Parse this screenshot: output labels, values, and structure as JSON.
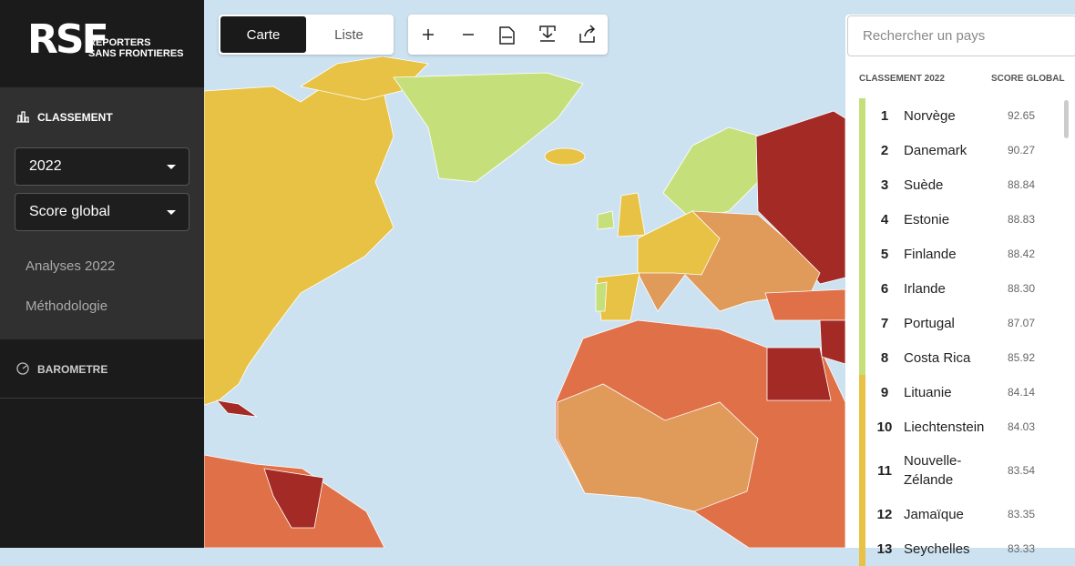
{
  "logo": {
    "mark": "RSF",
    "line1": "REPORTERS",
    "line2": "SANS FRONTIERES"
  },
  "sidebar": {
    "ranking_title": "CLASSEMENT",
    "year": "2022",
    "indicator": "Score global",
    "links": [
      "Analyses 2022",
      "Méthodologie"
    ],
    "barometer_title": "BAROMETRE"
  },
  "toolbar": {
    "tabs": [
      "Carte",
      "Liste"
    ]
  },
  "panel": {
    "search_placeholder": "Rechercher un pays",
    "header_left": "CLASSEMENT 2022",
    "header_right": "SCORE GLOBAL",
    "rows": [
      {
        "rank": "1",
        "country": "Norvège",
        "score": "92.65",
        "color": "#c5e07a"
      },
      {
        "rank": "2",
        "country": "Danemark",
        "score": "90.27",
        "color": "#c5e07a"
      },
      {
        "rank": "3",
        "country": "Suède",
        "score": "88.84",
        "color": "#c5e07a"
      },
      {
        "rank": "4",
        "country": "Estonie",
        "score": "88.83",
        "color": "#c5e07a"
      },
      {
        "rank": "5",
        "country": "Finlande",
        "score": "88.42",
        "color": "#c5e07a"
      },
      {
        "rank": "6",
        "country": "Irlande",
        "score": "88.30",
        "color": "#c5e07a"
      },
      {
        "rank": "7",
        "country": "Portugal",
        "score": "87.07",
        "color": "#c5e07a"
      },
      {
        "rank": "8",
        "country": "Costa Rica",
        "score": "85.92",
        "color": "#c5e07a"
      },
      {
        "rank": "9",
        "country": "Lituanie",
        "score": "84.14",
        "color": "#e8c244"
      },
      {
        "rank": "10",
        "country": "Liechtenstein",
        "score": "84.03",
        "color": "#e8c244"
      },
      {
        "rank": "11",
        "country": "Nouvelle-Zélande",
        "score": "83.54",
        "color": "#e8c244"
      },
      {
        "rank": "12",
        "country": "Jamaïque",
        "score": "83.35",
        "color": "#e8c244"
      },
      {
        "rank": "13",
        "country": "Seychelles",
        "score": "83.33",
        "color": "#e8c244"
      }
    ]
  }
}
